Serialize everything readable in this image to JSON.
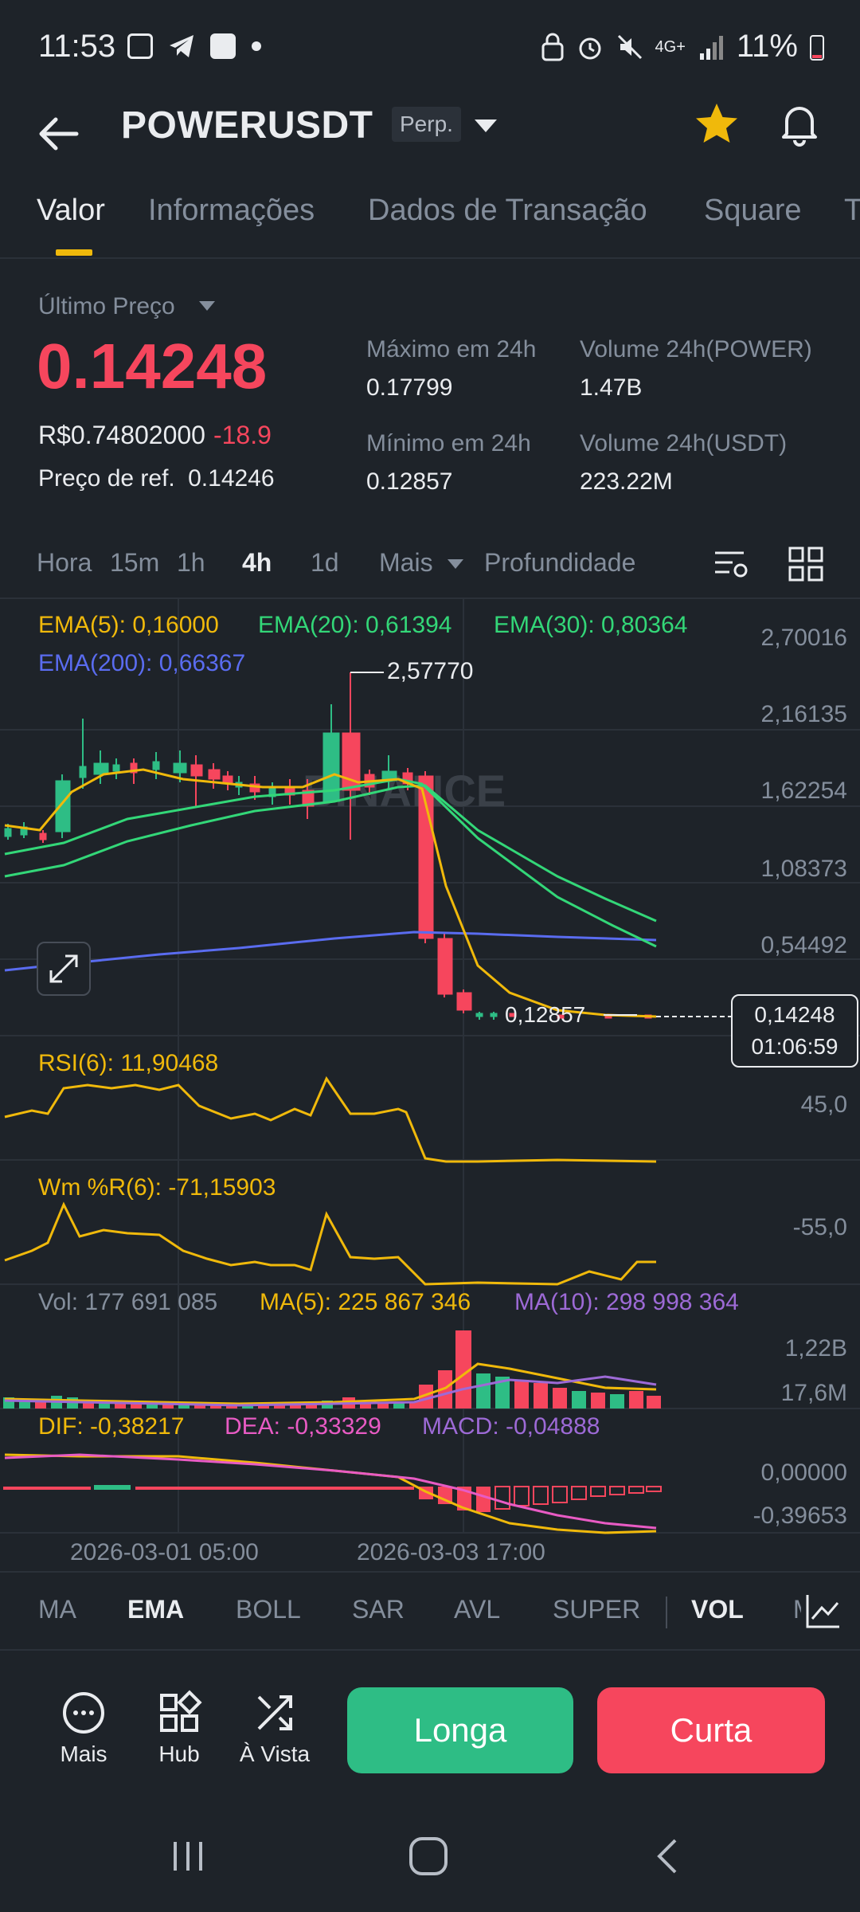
{
  "status_bar": {
    "time": "11:53",
    "battery": "11%",
    "network": "4G+"
  },
  "header": {
    "title": "POWERUSDT",
    "badge": "Perp."
  },
  "tabs": [
    {
      "label": "Valor",
      "active": true
    },
    {
      "label": "Informações"
    },
    {
      "label": "Dados de Transação"
    },
    {
      "label": "Square"
    },
    {
      "label": "T"
    }
  ],
  "price": {
    "last_price_label": "Último Preço",
    "last_price": "0.14248",
    "fiat": "R$0.74802000",
    "change": "-18.9",
    "ref_label": "Preço de ref.",
    "ref_value": "0.14246",
    "stats": {
      "high_label": "Máximo em 24h",
      "high_value": "0.17799",
      "low_label": "Mínimo em 24h",
      "low_value": "0.12857",
      "vol_base_label": "Volume 24h(POWER)",
      "vol_base_value": "1.47B",
      "vol_quote_label": "Volume 24h(USDT)",
      "vol_quote_value": "223.22M"
    }
  },
  "timeframes": {
    "items": [
      "Hora",
      "15m",
      "1h",
      "4h",
      "1d",
      "Mais",
      "Profundidade"
    ],
    "active": "4h"
  },
  "chart": {
    "ema_labels": {
      "ema5": "EMA(5): 0,16000",
      "ema20": "EMA(20): 0,61394",
      "ema30": "EMA(30): 0,80364",
      "ema200": "EMA(200): 0,66367"
    },
    "y_axis": [
      "2,70016",
      "2,16135",
      "1,62254",
      "1,08373",
      "0,54492"
    ],
    "high_marker": "2,57770",
    "low_marker": "0,12857",
    "current_price": "0,14248",
    "countdown": "01:06:59",
    "watermark": "BINANCE",
    "rsi_label": "RSI(6): 11,90468",
    "rsi_axis": "45,0",
    "wr_label": "Wm %R(6): -71,15903",
    "wr_axis": "-55,0",
    "vol_label": "Vol: 177 691 085",
    "vol_ma5": "MA(5): 225 867 346",
    "vol_ma10": "MA(10): 298 998 364",
    "vol_axis_top": "1,22B",
    "vol_axis_bottom": "17,6M",
    "dif_label": "DIF: -0,38217",
    "dea_label": "DEA: -0,33329",
    "macd_label": "MACD: -0,04888",
    "macd_axis_top": "0,00000",
    "macd_axis_bottom": "-0,39653",
    "dates": [
      "2026-03-01 05:00",
      "2026-03-03 17:00"
    ],
    "colors": {
      "up": "#2ebd85",
      "down": "#f6465d",
      "ema5": "#f0b90b",
      "ema20": "#33d778",
      "ema30": "#33d778",
      "ema200": "#5a6cf0",
      "ma10": "#9d6ad6",
      "dea": "#e85bc4"
    }
  },
  "indicator_tabs": {
    "items": [
      "MA",
      "EMA",
      "BOLL",
      "SAR",
      "AVL",
      "SUPER",
      "VOL",
      "M"
    ],
    "active": [
      "EMA",
      "VOL"
    ]
  },
  "actions": {
    "more": "Mais",
    "hub": "Hub",
    "spot": "À Vista",
    "long": "Longa",
    "short": "Curta"
  }
}
